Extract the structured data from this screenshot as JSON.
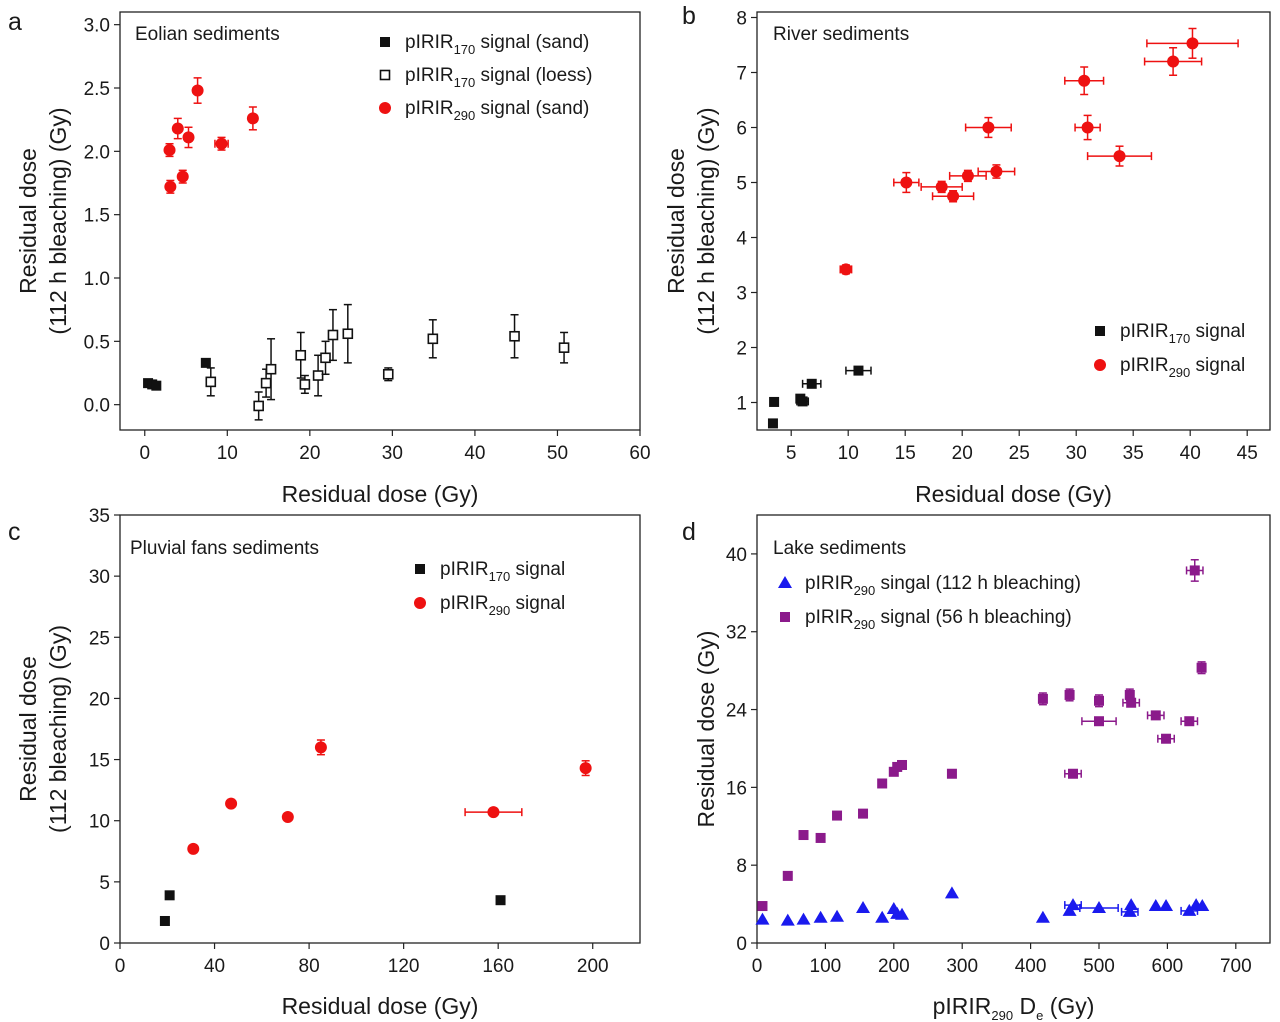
{
  "colors": {
    "black": "#111111",
    "red": "#ee1111",
    "blue": "#1a1aee",
    "purple": "#8b1a8b"
  },
  "chart_data": [
    {
      "type": "scatter",
      "panel_label": "a",
      "title": "Eolian sediments",
      "xlabel": "Residual dose (Gy)",
      "ylabel_lines": [
        "Residual dose",
        "(112 h bleaching) (Gy)"
      ],
      "xlim": [
        -3,
        60
      ],
      "ylim": [
        -0.2,
        3.1
      ],
      "xticks": [
        0,
        10,
        20,
        30,
        40,
        50,
        60
      ],
      "yticks": [
        0.0,
        0.5,
        1.0,
        1.5,
        2.0,
        2.5,
        3.0
      ],
      "ytick_labels": [
        "0.0",
        "0.5",
        "1.0",
        "1.5",
        "2.0",
        "2.5",
        "3.0"
      ],
      "legend_position": "top-right",
      "series": [
        {
          "name_base": "pIRIR",
          "name_sub": "170",
          "name_tail": " signal (sand)",
          "marker": "square-filled",
          "color": "#111111",
          "points": [
            {
              "x": 0.4,
              "y": 0.17
            },
            {
              "x": 0.9,
              "y": 0.16
            },
            {
              "x": 1.4,
              "y": 0.15
            },
            {
              "x": 7.4,
              "y": 0.33
            }
          ]
        },
        {
          "name_base": "pIRIR",
          "name_sub": "170",
          "name_tail": " signal (loess)",
          "marker": "square-open",
          "color": "#111111",
          "points": [
            {
              "x": 8.0,
              "y": 0.18,
              "ey": 0.11
            },
            {
              "x": 13.8,
              "y": -0.01,
              "ey": 0.11
            },
            {
              "x": 14.7,
              "y": 0.17,
              "ey": 0.11
            },
            {
              "x": 15.3,
              "y": 0.28,
              "ey": 0.24
            },
            {
              "x": 18.9,
              "y": 0.39,
              "ey": 0.18
            },
            {
              "x": 19.4,
              "y": 0.16,
              "ey": 0.07
            },
            {
              "x": 21.0,
              "y": 0.23,
              "ey": 0.16
            },
            {
              "x": 21.9,
              "y": 0.37,
              "ey": 0.13
            },
            {
              "x": 22.8,
              "y": 0.55,
              "ey": 0.2
            },
            {
              "x": 24.6,
              "y": 0.56,
              "ey": 0.23
            },
            {
              "x": 29.5,
              "y": 0.24,
              "ey": 0.05
            },
            {
              "x": 34.9,
              "y": 0.52,
              "ey": 0.15
            },
            {
              "x": 44.8,
              "y": 0.54,
              "ey": 0.17
            },
            {
              "x": 50.8,
              "y": 0.45,
              "ey": 0.12
            }
          ]
        },
        {
          "name_base": "pIRIR",
          "name_sub": "290",
          "name_tail": " signal (sand)",
          "marker": "circle-filled",
          "color": "#ee1111",
          "points": [
            {
              "x": 3.0,
              "y": 2.01,
              "ey": 0.05
            },
            {
              "x": 3.1,
              "y": 1.72,
              "ey": 0.05
            },
            {
              "x": 4.0,
              "y": 2.18,
              "ey": 0.08
            },
            {
              "x": 4.6,
              "y": 1.8,
              "ey": 0.05
            },
            {
              "x": 5.3,
              "y": 2.11,
              "ey": 0.08
            },
            {
              "x": 6.4,
              "y": 2.48,
              "ey": 0.1
            },
            {
              "x": 9.3,
              "y": 2.06,
              "ey": 0.05,
              "ex": 0.8
            },
            {
              "x": 13.1,
              "y": 2.26,
              "ey": 0.09
            }
          ]
        }
      ]
    },
    {
      "type": "scatter",
      "panel_label": "b",
      "title": "River sediments",
      "xlabel": "Residual dose (Gy)",
      "ylabel_lines": [
        "Residual dose",
        "(112 h bleaching) (Gy)"
      ],
      "xlim": [
        2,
        47
      ],
      "ylim": [
        0.5,
        8.1
      ],
      "xticks": [
        5,
        10,
        15,
        20,
        25,
        30,
        35,
        40,
        45
      ],
      "yticks": [
        1,
        2,
        3,
        4,
        5,
        6,
        7,
        8
      ],
      "ytick_labels": [
        "1",
        "2",
        "3",
        "4",
        "5",
        "6",
        "7",
        "8"
      ],
      "legend_position": "bottom-right",
      "series": [
        {
          "name_base": "pIRIR",
          "name_sub": "170",
          "name_tail": " signal",
          "marker": "square-filled",
          "color": "#111111",
          "points": [
            {
              "x": 3.4,
              "y": 0.62
            },
            {
              "x": 3.5,
              "y": 1.01
            },
            {
              "x": 5.8,
              "y": 1.07
            },
            {
              "x": 6.0,
              "y": 1.02,
              "ex": 0.5
            },
            {
              "x": 6.8,
              "y": 1.34,
              "ex": 0.8
            },
            {
              "x": 10.9,
              "y": 1.58,
              "ex": 1.1
            }
          ]
        },
        {
          "name_base": "pIRIR",
          "name_sub": "290",
          "name_tail": " signal",
          "marker": "circle-filled",
          "color": "#ee1111",
          "points": [
            {
              "x": 9.8,
              "y": 3.42,
              "ex": 0.5,
              "ey": 0.08
            },
            {
              "x": 15.1,
              "y": 5.0,
              "ex": 1.1,
              "ey": 0.18
            },
            {
              "x": 18.2,
              "y": 4.92,
              "ex": 1.8,
              "ey": 0.1
            },
            {
              "x": 19.2,
              "y": 4.75,
              "ex": 1.8,
              "ey": 0.1
            },
            {
              "x": 20.5,
              "y": 5.12,
              "ex": 1.6,
              "ey": 0.1
            },
            {
              "x": 22.3,
              "y": 6.0,
              "ex": 2.0,
              "ey": 0.18
            },
            {
              "x": 23.0,
              "y": 5.2,
              "ex": 1.6,
              "ey": 0.12
            },
            {
              "x": 30.7,
              "y": 6.85,
              "ex": 1.7,
              "ey": 0.25
            },
            {
              "x": 31.0,
              "y": 6.0,
              "ex": 1.1,
              "ey": 0.22
            },
            {
              "x": 33.8,
              "y": 5.48,
              "ex": 2.8,
              "ey": 0.18
            },
            {
              "x": 38.5,
              "y": 7.2,
              "ex": 2.5,
              "ey": 0.25
            },
            {
              "x": 40.2,
              "y": 7.53,
              "ex": 4.0,
              "ey": 0.27
            }
          ]
        }
      ]
    },
    {
      "type": "scatter",
      "panel_label": "c",
      "title": "Pluvial fans sediments",
      "xlabel": "Residual dose (Gy)",
      "ylabel_lines": [
        "Residual dose",
        "(112 bleaching) (Gy)"
      ],
      "xlim": [
        0,
        220
      ],
      "ylim": [
        0,
        35
      ],
      "xticks": [
        0,
        40,
        80,
        120,
        160,
        200
      ],
      "yticks": [
        0,
        5,
        10,
        15,
        20,
        25,
        30,
        35
      ],
      "ytick_labels": [
        "0",
        "5",
        "10",
        "15",
        "20",
        "25",
        "30",
        "35"
      ],
      "legend_position": "top-right",
      "series": [
        {
          "name_base": "pIRIR",
          "name_sub": "170",
          "name_tail": " signal",
          "marker": "square-filled",
          "color": "#111111",
          "points": [
            {
              "x": 19,
              "y": 1.8
            },
            {
              "x": 21,
              "y": 3.9
            },
            {
              "x": 161,
              "y": 3.5
            }
          ]
        },
        {
          "name_base": "pIRIR",
          "name_sub": "290",
          "name_tail": " signal",
          "marker": "circle-filled",
          "color": "#ee1111",
          "points": [
            {
              "x": 31,
              "y": 7.7
            },
            {
              "x": 47,
              "y": 11.4
            },
            {
              "x": 71,
              "y": 10.3
            },
            {
              "x": 85,
              "y": 16.0,
              "ey": 0.6
            },
            {
              "x": 158,
              "y": 10.7,
              "ex": 12
            },
            {
              "x": 197,
              "y": 14.3,
              "ey": 0.6
            }
          ]
        }
      ]
    },
    {
      "type": "scatter",
      "panel_label": "d",
      "title": "Lake sediments",
      "xlabel_base": "pIRIR",
      "xlabel_sub": "290",
      "xlabel_mid": " D",
      "xlabel_sub2": "e",
      "xlabel_tail": " (Gy)",
      "ylabel_lines": [
        "Residual dose (Gy)"
      ],
      "xlim": [
        0,
        750
      ],
      "ylim": [
        0,
        44
      ],
      "xticks": [
        0,
        100,
        200,
        300,
        400,
        500,
        600,
        700
      ],
      "yticks": [
        0,
        8,
        16,
        24,
        32,
        40
      ],
      "ytick_labels": [
        "0",
        "8",
        "16",
        "24",
        "32",
        "40"
      ],
      "legend_position": "top-left",
      "series": [
        {
          "name_base": "pIRIR",
          "name_sub": "290",
          "name_tail": " singal (112 h bleaching)",
          "marker": "triangle-filled",
          "color": "#1a1aee",
          "points": [
            {
              "x": 8,
              "y": 2.4
            },
            {
              "x": 45,
              "y": 2.3
            },
            {
              "x": 68,
              "y": 2.4
            },
            {
              "x": 93,
              "y": 2.6
            },
            {
              "x": 117,
              "y": 2.7
            },
            {
              "x": 155,
              "y": 3.6
            },
            {
              "x": 183,
              "y": 2.6
            },
            {
              "x": 200,
              "y": 3.5
            },
            {
              "x": 205,
              "y": 3.0
            },
            {
              "x": 212,
              "y": 2.9
            },
            {
              "x": 285,
              "y": 5.1
            },
            {
              "x": 418,
              "y": 2.6
            },
            {
              "x": 457,
              "y": 3.3
            },
            {
              "x": 462,
              "y": 3.9,
              "ex": 12
            },
            {
              "x": 500,
              "y": 3.6,
              "ex": 28
            },
            {
              "x": 545,
              "y": 3.2,
              "ex": 12
            },
            {
              "x": 547,
              "y": 3.9
            },
            {
              "x": 583,
              "y": 3.8
            },
            {
              "x": 598,
              "y": 3.8
            },
            {
              "x": 632,
              "y": 3.3,
              "ex": 12
            },
            {
              "x": 642,
              "y": 3.9
            },
            {
              "x": 651,
              "y": 3.8
            }
          ]
        },
        {
          "name_base": "pIRIR",
          "name_sub": "290",
          "name_tail": " signal (56 h bleaching)",
          "marker": "square-filled",
          "color": "#8b1a8b",
          "points": [
            {
              "x": 8,
              "y": 3.8
            },
            {
              "x": 45,
              "y": 6.9
            },
            {
              "x": 68,
              "y": 11.1
            },
            {
              "x": 93,
              "y": 10.8
            },
            {
              "x": 117,
              "y": 13.1
            },
            {
              "x": 155,
              "y": 13.3
            },
            {
              "x": 183,
              "y": 16.4
            },
            {
              "x": 200,
              "y": 17.6
            },
            {
              "x": 205,
              "y": 18.1
            },
            {
              "x": 212,
              "y": 18.3
            },
            {
              "x": 285,
              "y": 17.4
            },
            {
              "x": 418,
              "y": 25.1,
              "ey": 0.6
            },
            {
              "x": 457,
              "y": 25.5,
              "ey": 0.6
            },
            {
              "x": 462,
              "y": 17.4,
              "ex": 12
            },
            {
              "x": 500,
              "y": 24.9,
              "ey": 0.6
            },
            {
              "x": 500,
              "y": 22.8,
              "ex": 25
            },
            {
              "x": 545,
              "y": 25.5,
              "ey": 0.6
            },
            {
              "x": 547,
              "y": 24.7,
              "ex": 12
            },
            {
              "x": 583,
              "y": 23.4,
              "ex": 12
            },
            {
              "x": 598,
              "y": 21.0,
              "ex": 12
            },
            {
              "x": 632,
              "y": 22.8,
              "ex": 12
            },
            {
              "x": 640,
              "y": 38.3,
              "ex": 12,
              "ey": 1.1
            },
            {
              "x": 650,
              "y": 28.3,
              "ey": 0.6
            }
          ]
        }
      ]
    }
  ]
}
